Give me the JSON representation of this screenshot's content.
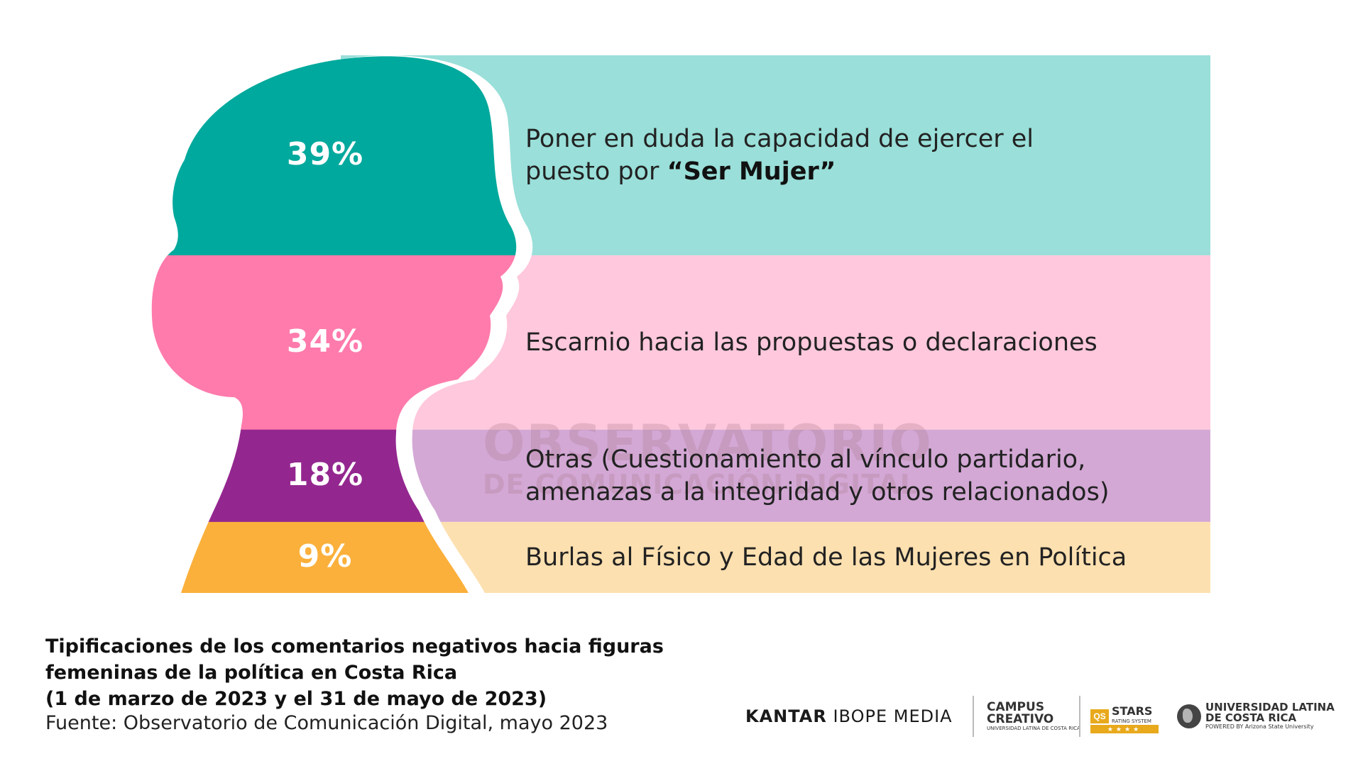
{
  "chart_data": {
    "type": "bar",
    "categories": [
      "Poner en duda la capacidad de ejercer el puesto por “Ser Mujer”",
      "Escarnio hacia las propuestas o declaraciones",
      "Otras (Cuestionamiento al vínculo partidario, amenazas a la integridad y otros relacionados)",
      "Burlas al Físico y Edad de las Mujeres en Política"
    ],
    "category_lines": [
      [
        "Poner en duda la capacidad de ejercer el",
        "puesto por ",
        "“Ser Mujer”"
      ],
      [
        "Escarnio hacia las propuestas o declaraciones"
      ],
      [
        "Otras (Cuestionamiento al vínculo partidario,",
        "amenazas a la integridad y otros relacionados)"
      ],
      [
        "Burlas al Físico y Edad de las Mujeres en Política"
      ]
    ],
    "values": [
      39,
      34,
      18,
      9
    ],
    "value_labels": [
      "39%",
      "34%",
      "18%",
      "9%"
    ],
    "unit": "%",
    "colors_dark": [
      "#00A99D",
      "#FF7BAC",
      "#93278F",
      "#FBB03B"
    ],
    "colors_light": [
      "#9ADFD9",
      "#FFC8DC",
      "#D3A8D5",
      "#FDE0B0"
    ],
    "title": "",
    "xlabel": "",
    "ylabel": ""
  },
  "watermark": {
    "line1": "OBSERVATORIO",
    "line2": "DE COMUNICACIÓN DIGITAL"
  },
  "footer": {
    "title_lines": [
      "Tipificaciones de los comentarios negativos hacia figuras",
      "femeninas de la política en Costa Rica",
      "(1 de marzo de 2023 y el 31 de mayo de 2023)"
    ],
    "source": "Fuente: Observatorio de Comunicación Digital, mayo 2023"
  },
  "logos": {
    "kantar_bold": "KANTAR",
    "kantar_light": "IBOPE MEDIA",
    "campus_line1": "CAMPUS",
    "campus_line2": "CREATIVO",
    "campus_small": "UNIVERSIDAD LATINA DE COSTA RICA",
    "qs": "QS",
    "stars": "STARS",
    "stars_small": "RATING SYSTEM",
    "stars_bar": "★★★★",
    "ulatina_line1": "UNIVERSIDAD LATINA",
    "ulatina_line2": "DE COSTA RICA",
    "ulatina_small": "POWERED BY Arizona State University"
  }
}
